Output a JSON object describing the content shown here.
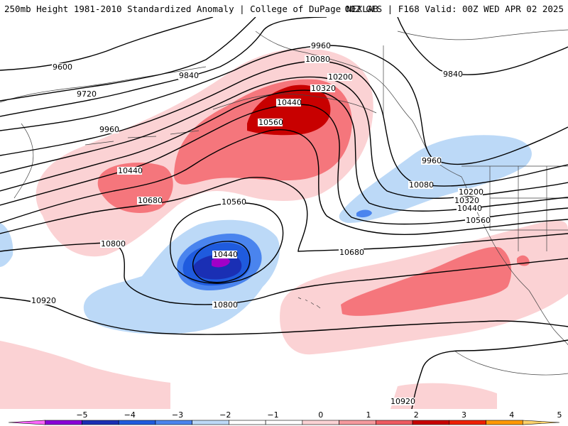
{
  "header": {
    "left_title": "250mb Height 1981-2010 Standardized Anomaly | College of DuPage NEXLAB",
    "right_title": "00Z GFS | F168 Valid: 00Z WED APR 02 2025"
  },
  "contour_labels": [
    {
      "name": "contour-label-9600",
      "text": "9600"
    },
    {
      "name": "contour-label-9720",
      "text": "9720"
    },
    {
      "name": "contour-label-9840-west",
      "text": "9840"
    },
    {
      "name": "contour-label-9960-west",
      "text": "9960"
    },
    {
      "name": "contour-label-9960-north",
      "text": "9960"
    },
    {
      "name": "contour-label-10080-north",
      "text": "10080"
    },
    {
      "name": "contour-label-10200-north",
      "text": "10200"
    },
    {
      "name": "contour-label-10320-north",
      "text": "10320"
    },
    {
      "name": "contour-label-10440-north",
      "text": "10440"
    },
    {
      "name": "contour-label-10560-north",
      "text": "10560"
    },
    {
      "name": "contour-label-9840-east",
      "text": "9840"
    },
    {
      "name": "contour-label-9960-east",
      "text": "9960"
    },
    {
      "name": "contour-label-10080-east",
      "text": "10080"
    },
    {
      "name": "contour-label-10200-east",
      "text": "10200"
    },
    {
      "name": "contour-label-10320-east",
      "text": "10320"
    },
    {
      "name": "contour-label-10440-east",
      "text": "10440"
    },
    {
      "name": "contour-label-10560-east",
      "text": "10560"
    },
    {
      "name": "contour-label-10440-west",
      "text": "10440"
    },
    {
      "name": "contour-label-10680-west",
      "text": "10680"
    },
    {
      "name": "contour-label-10560-low",
      "text": "10560"
    },
    {
      "name": "contour-label-10440-low",
      "text": "10440"
    },
    {
      "name": "contour-label-10680-mid",
      "text": "10680"
    },
    {
      "name": "contour-label-10800-west",
      "text": "10800"
    },
    {
      "name": "contour-label-10800-mid",
      "text": "10800"
    },
    {
      "name": "contour-label-10920-west",
      "text": "10920"
    },
    {
      "name": "contour-label-10920-south",
      "text": "10920"
    }
  ],
  "colorbar": {
    "colors": [
      "#ff66ff",
      "#8a00d8",
      "#1a2fb4",
      "#1f5bde",
      "#4a84ee",
      "#bcd9f7",
      "#ffffff",
      "#ffffff",
      "#fbd2d4",
      "#f59a9e",
      "#ee5a60",
      "#c80000",
      "#ee2000",
      "#ff9a00",
      "#ffd36b"
    ],
    "ticks": [
      "−5",
      "−4",
      "−3",
      "−2",
      "−1",
      "0",
      "1",
      "2",
      "3",
      "4",
      "5"
    ]
  }
}
